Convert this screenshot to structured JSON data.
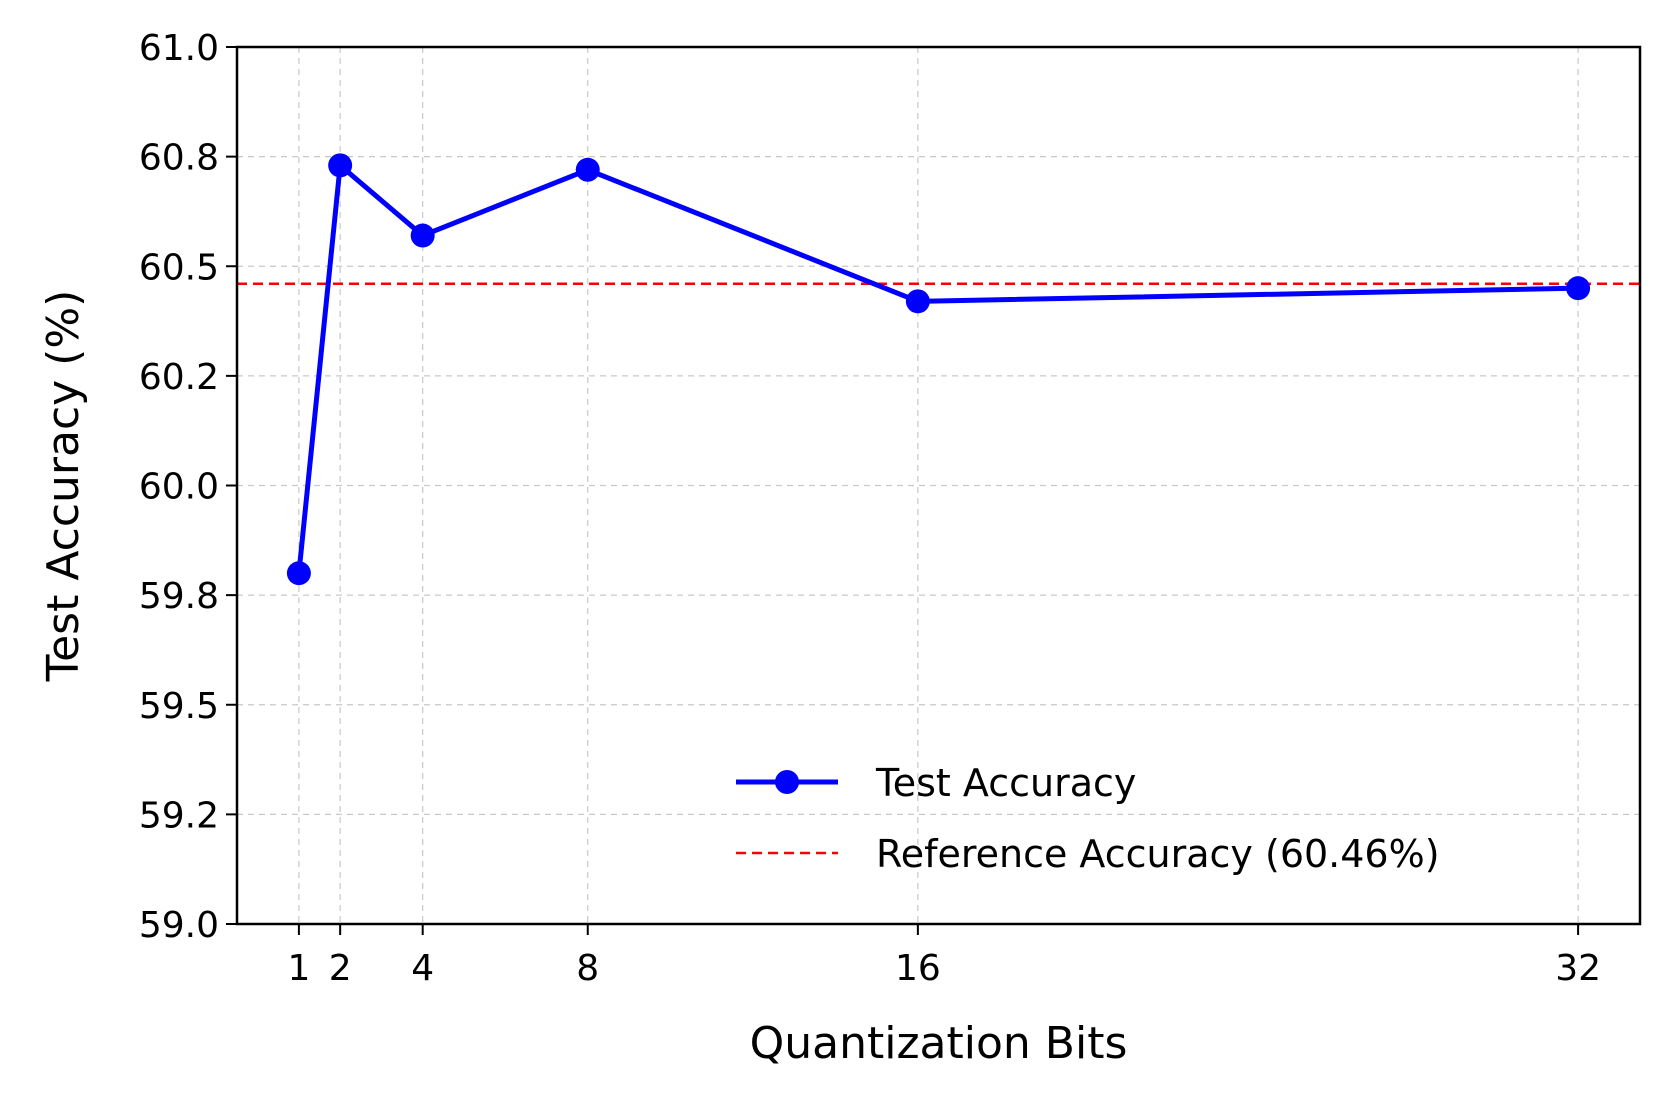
{
  "chart_data": {
    "type": "line",
    "title": "",
    "xlabel": "Quantization Bits",
    "ylabel": "Test Accuracy (%)",
    "xlim": [
      -0.5,
      33.5
    ],
    "ylim": [
      59.0,
      61.0
    ],
    "x_ticks": [
      1,
      2,
      4,
      8,
      16,
      32
    ],
    "y_ticks": [
      59.0,
      59.25,
      59.5,
      59.75,
      60.0,
      60.25,
      60.5,
      60.75,
      61.0
    ],
    "y_tick_labels": [
      "59.0",
      "59.2",
      "59.5",
      "59.8",
      "60.0",
      "60.2",
      "60.5",
      "60.8",
      "61.0"
    ],
    "grid": true,
    "legend_position": "lower-right",
    "series": [
      {
        "name": "Test Accuracy",
        "color": "#0000ff",
        "style": "solid-with-markers",
        "x": [
          1,
          2,
          4,
          8,
          16,
          32
        ],
        "y": [
          59.8,
          60.73,
          60.57,
          60.72,
          60.42,
          60.45
        ]
      }
    ],
    "reference": {
      "name": "Reference Accuracy (60.46%)",
      "value": 60.46,
      "color": "#ff0000",
      "style": "dashed"
    }
  }
}
